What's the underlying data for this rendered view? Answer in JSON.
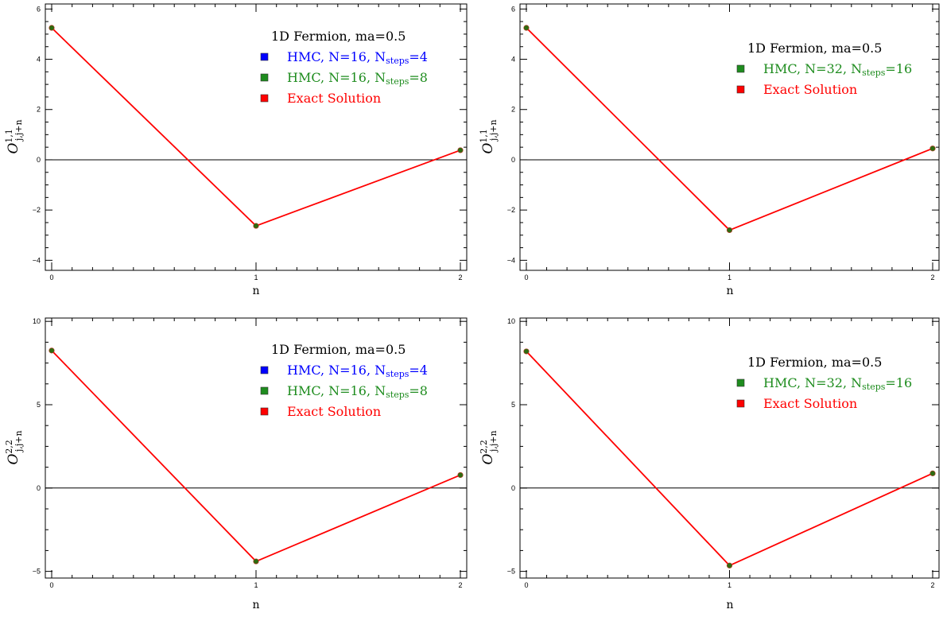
{
  "colors": {
    "background": "#ffffff",
    "axis": "#000000",
    "zero_line": "#000000",
    "exact_line": "#ff0000",
    "hmc_blue": "#0000ff",
    "hmc_green": "#1e8c1e",
    "exact_red": "#ff0000",
    "marker_fill": "#2e6b10"
  },
  "chart_data": [
    {
      "type": "line",
      "panel": "top-left",
      "xlabel": "n",
      "ylabel": {
        "symbol": "O",
        "sup": "1,1",
        "sub": "j,j+n"
      },
      "x": [
        0,
        1,
        2
      ],
      "xticks": [
        "0",
        "1",
        "2"
      ],
      "ylim": [
        -4.4,
        6.2
      ],
      "yticks": [
        -4,
        -2,
        0,
        2,
        4,
        6
      ],
      "grid": false,
      "legend_position": "top-right",
      "legend": {
        "title": "1D Fermion, ma=0.5",
        "entries": [
          {
            "prefix": "HMC, N=16, N",
            "sub": "steps",
            "suffix": "=4",
            "color": "#0000ff"
          },
          {
            "prefix": "HMC, N=16, N",
            "sub": "steps",
            "suffix": "=8",
            "color": "#1e8c1e"
          },
          {
            "prefix": "Exact Solution",
            "sub": "",
            "suffix": "",
            "color": "#ff0000"
          }
        ]
      },
      "series": [
        {
          "name": "HMC, N=16, Nsteps=4",
          "color": "#0000ff",
          "values": [
            5.25,
            -2.63,
            0.38
          ]
        },
        {
          "name": "HMC, N=16, Nsteps=8",
          "color": "#1e8c1e",
          "values": [
            5.25,
            -2.63,
            0.38
          ]
        },
        {
          "name": "Exact Solution",
          "color": "#ff0000",
          "values": [
            5.25,
            -2.63,
            0.38
          ]
        }
      ]
    },
    {
      "type": "line",
      "panel": "top-right",
      "xlabel": "n",
      "ylabel": {
        "symbol": "O",
        "sup": "1,1",
        "sub": "j,j+n"
      },
      "x": [
        0,
        1,
        2
      ],
      "xticks": [
        "0",
        "1",
        "2"
      ],
      "ylim": [
        -4.4,
        6.2
      ],
      "yticks": [
        -4,
        -2,
        0,
        2,
        4,
        6
      ],
      "grid": false,
      "legend_position": "top-right",
      "legend": {
        "title": "1D Fermion, ma=0.5",
        "entries": [
          {
            "prefix": "HMC, N=32, N",
            "sub": "steps",
            "suffix": "=16",
            "color": "#1e8c1e"
          },
          {
            "prefix": "Exact Solution",
            "sub": "",
            "suffix": "",
            "color": "#ff0000"
          }
        ]
      },
      "series": [
        {
          "name": "HMC, N=32, Nsteps=16",
          "color": "#1e8c1e",
          "values": [
            5.25,
            -2.8,
            0.45
          ]
        },
        {
          "name": "Exact Solution",
          "color": "#ff0000",
          "values": [
            5.25,
            -2.8,
            0.45
          ]
        }
      ]
    },
    {
      "type": "line",
      "panel": "bottom-left",
      "xlabel": "n",
      "ylabel": {
        "symbol": "O",
        "sup": "2,2",
        "sub": "j,j+n"
      },
      "x": [
        0,
        1,
        2
      ],
      "xticks": [
        "0",
        "1",
        "2"
      ],
      "ylim": [
        -5.4,
        10.2
      ],
      "yticks": [
        -5,
        0,
        5,
        10
      ],
      "grid": false,
      "legend_position": "top-right",
      "legend": {
        "title": "1D Fermion, ma=0.5",
        "entries": [
          {
            "prefix": "HMC, N=16, N",
            "sub": "steps",
            "suffix": "=4",
            "color": "#0000ff"
          },
          {
            "prefix": "HMC, N=16, N",
            "sub": "steps",
            "suffix": "=8",
            "color": "#1e8c1e"
          },
          {
            "prefix": "Exact Solution",
            "sub": "",
            "suffix": "",
            "color": "#ff0000"
          }
        ]
      },
      "series": [
        {
          "name": "HMC, N=16, Nsteps=4",
          "color": "#0000ff",
          "values": [
            8.25,
            -4.4,
            0.78
          ]
        },
        {
          "name": "HMC, N=16, Nsteps=8",
          "color": "#1e8c1e",
          "values": [
            8.25,
            -4.4,
            0.78
          ]
        },
        {
          "name": "Exact Solution",
          "color": "#ff0000",
          "values": [
            8.25,
            -4.4,
            0.78
          ]
        }
      ]
    },
    {
      "type": "line",
      "panel": "bottom-right",
      "xlabel": "n",
      "ylabel": {
        "symbol": "O",
        "sup": "2,2",
        "sub": "j,j+n"
      },
      "x": [
        0,
        1,
        2
      ],
      "xticks": [
        "0",
        "1",
        "2"
      ],
      "ylim": [
        -5.4,
        10.2
      ],
      "yticks": [
        -5,
        0,
        5,
        10
      ],
      "grid": false,
      "legend_position": "top-right",
      "legend": {
        "title": "1D Fermion, ma=0.5",
        "entries": [
          {
            "prefix": "HMC, N=32, N",
            "sub": "steps",
            "suffix": "=16",
            "color": "#1e8c1e"
          },
          {
            "prefix": "Exact Solution",
            "sub": "",
            "suffix": "",
            "color": "#ff0000"
          }
        ]
      },
      "series": [
        {
          "name": "HMC, N=32, Nsteps=16",
          "color": "#1e8c1e",
          "values": [
            8.2,
            -4.65,
            0.88
          ]
        },
        {
          "name": "Exact Solution",
          "color": "#ff0000",
          "values": [
            8.2,
            -4.65,
            0.88
          ]
        }
      ]
    }
  ]
}
